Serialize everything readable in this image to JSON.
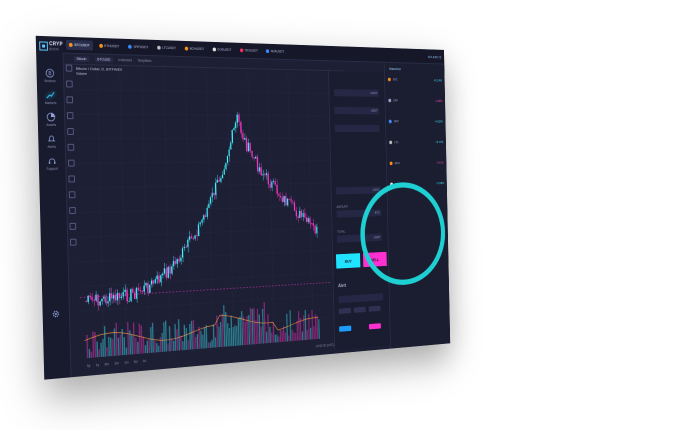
{
  "app": {
    "logo_line1": "CRYPTO",
    "logo_line2": "BOOK"
  },
  "sidebar": {
    "items": [
      {
        "label": "Brokers",
        "icon": "bitcoin-icon"
      },
      {
        "label": "Markets",
        "icon": "chart-icon"
      },
      {
        "label": "Assets",
        "icon": "pie-icon"
      },
      {
        "label": "Alerts",
        "icon": "bell-icon"
      },
      {
        "label": "Settings",
        "icon": "gear-icon"
      },
      {
        "label": "Support",
        "icon": "headset-icon"
      }
    ]
  },
  "topbar": {
    "tickers": [
      "BTCUSDT",
      "ETHUSDT",
      "XRPUSDT",
      "LTCUSDT",
      "BCHUSDT",
      "EOSUSDT",
      "TRXUSDT",
      "ADAUSDT",
      "XLMUSDT",
      "DASHUSDT"
    ],
    "account": "$ 2,439.72"
  },
  "toolbar": {
    "symbol": "Bitcoin",
    "pair": "BTCUSD",
    "indicators": "Indicators",
    "templates": "Templates"
  },
  "chart": {
    "title": "Bitcoin / Dollar, D, BITFINEX",
    "sub_label": "Volume",
    "colors": {
      "up": "#3ff0ff",
      "down": "#ff36c8",
      "bg": "#1d1f34"
    }
  },
  "timeframes": {
    "items": [
      "5y",
      "1y",
      "6m",
      "3m",
      "1m",
      "5d",
      "1d"
    ],
    "clock": "15:52:30 (UTC)"
  },
  "order": {
    "amount_label": "AMOUNT",
    "total_label": "TOTAL",
    "price_unit": "USDT",
    "amount_unit": "BTC",
    "total_unit": "USDT",
    "buy_label": "BUY",
    "sell_label": "SELL",
    "alert_label": "Alert"
  },
  "rightpanel": {
    "title": "Watchlist",
    "rows": [
      {
        "name": "BTC",
        "val": "+2.14%",
        "neg": false
      },
      {
        "name": "ETH",
        "val": "-1.08%",
        "neg": true
      },
      {
        "name": "XRP",
        "val": "+0.52%",
        "neg": false
      },
      {
        "name": "LTC",
        "val": "+3.77%",
        "neg": false
      },
      {
        "name": "BCH",
        "val": "-0.41%",
        "neg": true
      },
      {
        "name": "EOS",
        "val": "+1.96%",
        "neg": false
      }
    ]
  }
}
